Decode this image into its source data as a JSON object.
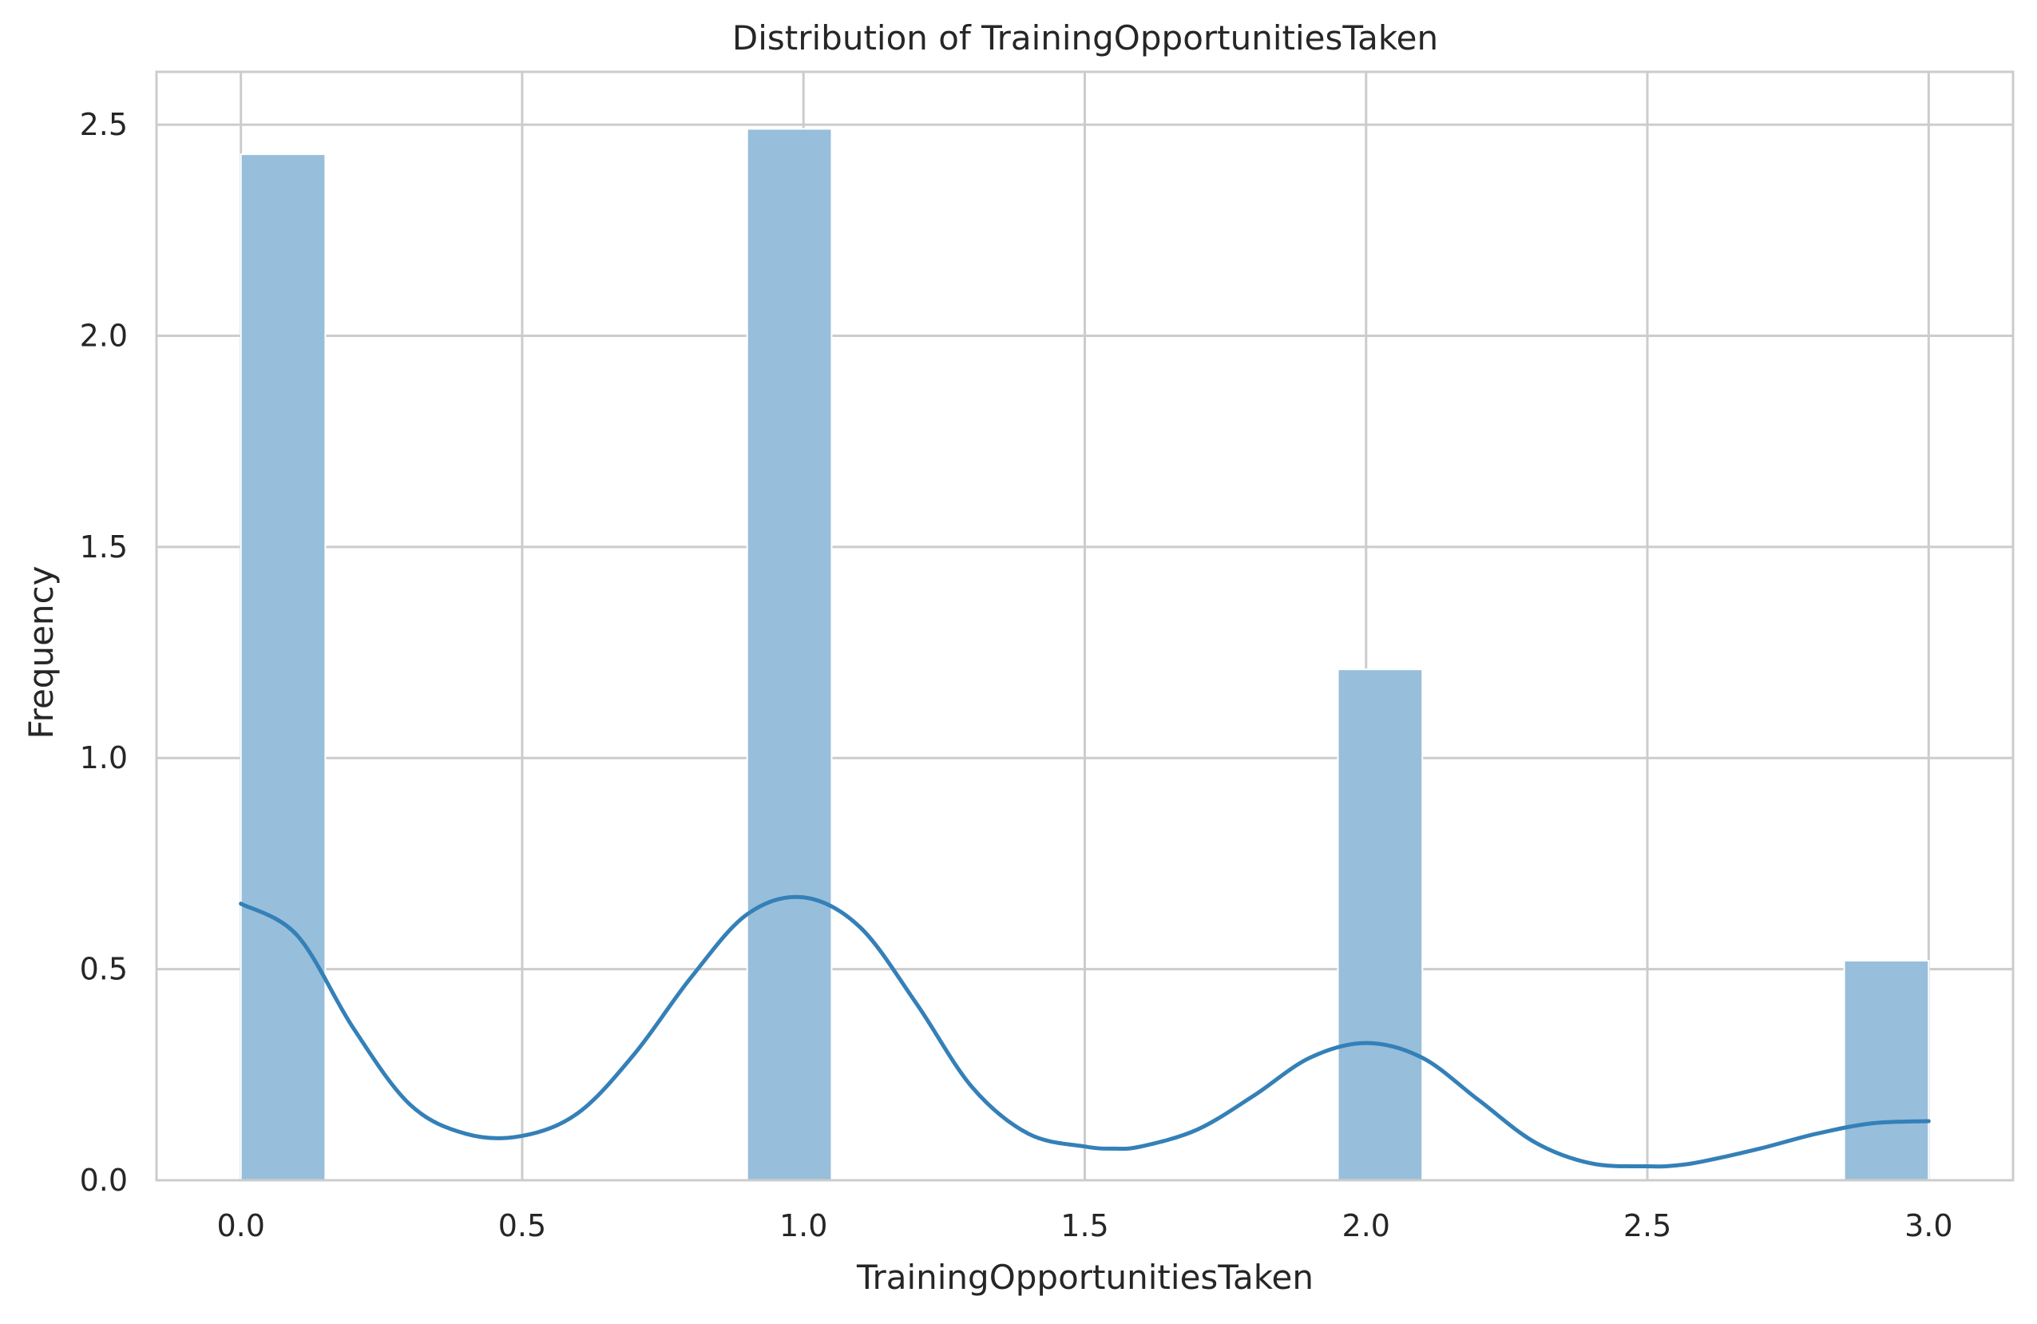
{
  "chart_data": {
    "type": "bar",
    "title": "Distribution of TrainingOpportunitiesTaken",
    "xlabel": "TrainingOpportunitiesTaken",
    "ylabel": "Frequency",
    "xlim": [
      -0.15,
      3.15
    ],
    "ylim": [
      0,
      2.625
    ],
    "x_ticks": [
      0.0,
      0.5,
      1.0,
      1.5,
      2.0,
      2.5,
      3.0
    ],
    "x_tick_labels": [
      "0.0",
      "0.5",
      "1.0",
      "1.5",
      "2.0",
      "2.5",
      "3.0"
    ],
    "y_ticks": [
      0.0,
      0.5,
      1.0,
      1.5,
      2.0,
      2.5
    ],
    "y_tick_labels": [
      "0.0",
      "0.5",
      "1.0",
      "1.5",
      "2.0",
      "2.5"
    ],
    "grid": true,
    "bars": [
      {
        "x_start": 0.0,
        "x_end": 0.15,
        "value": 2.43
      },
      {
        "x_start": 0.9,
        "x_end": 1.05,
        "value": 2.49
      },
      {
        "x_start": 1.95,
        "x_end": 2.1,
        "value": 1.21
      },
      {
        "x_start": 2.85,
        "x_end": 3.0,
        "value": 0.52
      }
    ],
    "kde": {
      "x": [
        0.0,
        0.1,
        0.2,
        0.3,
        0.4,
        0.5,
        0.6,
        0.7,
        0.8,
        0.9,
        1.0,
        1.1,
        1.2,
        1.3,
        1.4,
        1.5,
        1.55,
        1.6,
        1.7,
        1.8,
        1.9,
        2.0,
        2.1,
        2.2,
        2.3,
        2.4,
        2.5,
        2.55,
        2.6,
        2.7,
        2.8,
        2.9,
        3.0
      ],
      "y": [
        0.655,
        0.58,
        0.36,
        0.18,
        0.11,
        0.105,
        0.16,
        0.3,
        0.48,
        0.63,
        0.67,
        0.6,
        0.42,
        0.22,
        0.11,
        0.08,
        0.075,
        0.08,
        0.12,
        0.2,
        0.29,
        0.325,
        0.29,
        0.19,
        0.09,
        0.04,
        0.033,
        0.035,
        0.045,
        0.075,
        0.11,
        0.135,
        0.14
      ]
    },
    "colors": {
      "bar_fill": "#97bedb",
      "kde_line": "#3480b8",
      "grid": "#cccccc",
      "spine": "#cccccc"
    }
  }
}
